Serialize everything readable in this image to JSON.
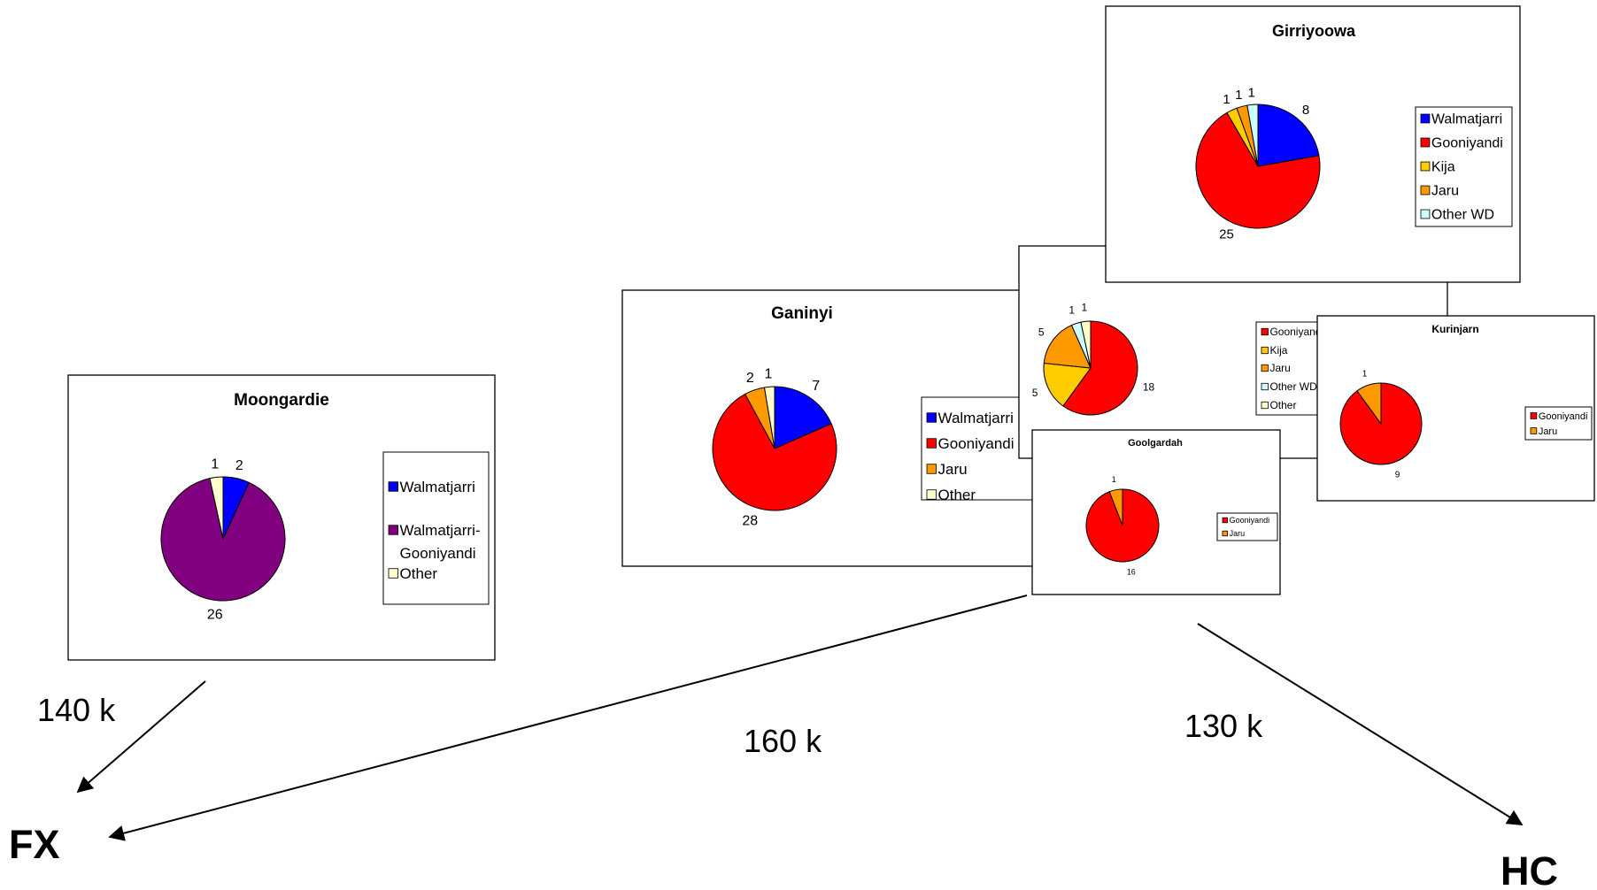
{
  "distance_labels": [
    "140 k",
    "160 k",
    "130 k"
  ],
  "endpoints": [
    "FX",
    "HC"
  ],
  "chart_data": [
    {
      "type": "pie",
      "title": "Moongardie",
      "slices": [
        {
          "label": "Walmatjarri",
          "value": 2,
          "color": "#0000FF",
          "in_legend": true
        },
        {
          "label": "Walmatjarri-Gooniyandi",
          "value": 26,
          "color": "#800080",
          "in_legend": true
        },
        {
          "label": "Other",
          "value": 1,
          "color": "#FFFFCC",
          "in_legend": true
        }
      ],
      "legend_entries": [
        "Walmatjarri",
        "Walmatjarri-",
        "Gooniyandi",
        "Other"
      ]
    },
    {
      "type": "pie",
      "title": "Ganinyi",
      "slices": [
        {
          "label": "Walmatjarri",
          "value": 7,
          "color": "#0000FF",
          "in_legend": true
        },
        {
          "label": "Gooniyandi",
          "value": 28,
          "color": "#FF0000",
          "in_legend": true
        },
        {
          "label": "Jaru",
          "value": 2,
          "color": "#FF9900",
          "in_legend": true
        },
        {
          "label": "Other",
          "value": 1,
          "color": "#FFFFCC",
          "in_legend": true
        }
      ],
      "legend_entries": [
        "Walmatjarri",
        "Gooniyandi",
        "Jaru",
        "Other"
      ]
    },
    {
      "type": "pie",
      "title": "",
      "slices": [
        {
          "label": "Gooniyandi",
          "value": 18,
          "color": "#FF0000",
          "in_legend": true
        },
        {
          "label": "Kija",
          "value": 5,
          "color": "#FFCC00",
          "in_legend": true
        },
        {
          "label": "Jaru",
          "value": 5,
          "color": "#FF9900",
          "in_legend": true
        },
        {
          "label": "Other WD",
          "value": 1,
          "color": "#CCFFFF",
          "in_legend": true
        },
        {
          "label": "Other",
          "value": 1,
          "color": "#FFFFCC",
          "in_legend": true
        }
      ],
      "legend_entries": [
        "Gooniyandi",
        "Kija",
        "Jaru",
        "Other WD",
        "Other"
      ]
    },
    {
      "type": "pie",
      "title": "Girriyoowa",
      "slices": [
        {
          "label": "Walmatjarri",
          "value": 8,
          "color": "#0000FF",
          "in_legend": true
        },
        {
          "label": "Gooniyandi",
          "value": 25,
          "color": "#FF0000",
          "in_legend": true
        },
        {
          "label": "Kija",
          "value": 1,
          "color": "#FFCC00",
          "in_legend": true
        },
        {
          "label": "Jaru",
          "value": 1,
          "color": "#FF9900",
          "in_legend": true
        },
        {
          "label": "Other WD",
          "value": 1,
          "color": "#CCFFFF",
          "in_legend": true
        }
      ],
      "legend_entries": [
        "Walmatjarri",
        "Gooniyandi",
        "Kija",
        "Jaru",
        "Other WD"
      ]
    },
    {
      "type": "pie",
      "title": "Kurinjarn",
      "slices": [
        {
          "label": "Gooniyandi",
          "value": 9,
          "color": "#FF0000",
          "in_legend": true
        },
        {
          "label": "Jaru",
          "value": 1,
          "color": "#FF9900",
          "in_legend": true
        }
      ],
      "legend_entries": [
        "Gooniyandi",
        "Jaru"
      ]
    },
    {
      "type": "pie",
      "title": "Goolgardah",
      "slices": [
        {
          "label": "Gooniyandi",
          "value": 16,
          "color": "#FF0000",
          "in_legend": true
        },
        {
          "label": "Jaru",
          "value": 1,
          "color": "#FF9900",
          "in_legend": true
        }
      ],
      "legend_entries": [
        "Gooniyandi",
        "Jaru"
      ]
    }
  ]
}
